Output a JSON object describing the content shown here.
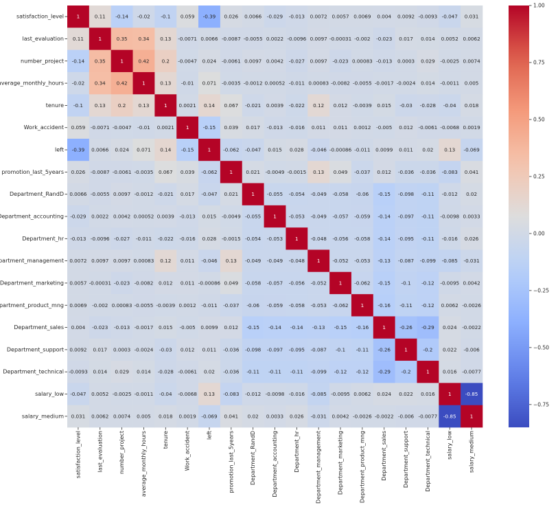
{
  "chart_data": {
    "type": "heatmap",
    "title": "",
    "xlabel": "",
    "ylabel": "",
    "colormap": "coolwarm",
    "vmin": -0.85,
    "vmax": 1.0,
    "annotate": true,
    "labels": [
      "satisfaction_level",
      "last_evaluation",
      "number_project",
      "average_monthly_hours",
      "tenure",
      "Work_accident",
      "left",
      "promotion_last_5years",
      "Department_RandD",
      "Department_accounting",
      "Department_hr",
      "Department_management",
      "Department_marketing",
      "Department_product_mng",
      "Department_sales",
      "Department_support",
      "Department_technical",
      "salary_low",
      "salary_medium"
    ],
    "values": [
      [
        1,
        0.11,
        -0.14,
        -0.02,
        -0.1,
        0.059,
        -0.39,
        0.026,
        0.0066,
        -0.029,
        -0.013,
        0.0072,
        0.0057,
        0.0069,
        0.004,
        0.0092,
        -0.0093,
        -0.047,
        0.031
      ],
      [
        0.11,
        1,
        0.35,
        0.34,
        0.13,
        -0.0071,
        0.0066,
        -0.0087,
        -0.0055,
        0.0022,
        -0.0096,
        0.0097,
        -0.00031,
        -0.002,
        -0.023,
        0.017,
        0.014,
        0.0052,
        0.0062
      ],
      [
        -0.14,
        0.35,
        1,
        0.42,
        0.2,
        -0.0047,
        0.024,
        -0.0061,
        0.0097,
        0.0042,
        -0.027,
        0.0097,
        -0.023,
        0.00083,
        -0.013,
        0.0003,
        0.029,
        -0.0025,
        0.0074
      ],
      [
        -0.02,
        0.34,
        0.42,
        1,
        0.13,
        -0.01,
        0.071,
        -0.0035,
        -0.0012,
        0.00052,
        -0.011,
        0.00083,
        -0.0082,
        -0.0055,
        -0.0017,
        -0.0024,
        0.014,
        -0.0011,
        0.005
      ],
      [
        -0.1,
        0.13,
        0.2,
        0.13,
        1,
        0.0021,
        0.14,
        0.067,
        -0.021,
        0.0039,
        -0.022,
        0.12,
        0.012,
        -0.0039,
        0.015,
        -0.03,
        -0.028,
        -0.04,
        0.018
      ],
      [
        0.059,
        -0.0071,
        -0.0047,
        -0.01,
        0.0021,
        1,
        -0.15,
        0.039,
        0.017,
        -0.013,
        -0.016,
        0.011,
        0.011,
        0.0012,
        -0.005,
        0.012,
        -0.0061,
        -0.0068,
        0.0019
      ],
      [
        -0.39,
        0.0066,
        0.024,
        0.071,
        0.14,
        -0.15,
        1,
        -0.062,
        -0.047,
        0.015,
        0.028,
        -0.046,
        -0.00086,
        -0.011,
        0.0099,
        0.011,
        0.02,
        0.13,
        -0.069
      ],
      [
        0.026,
        -0.0087,
        -0.0061,
        -0.0035,
        0.067,
        0.039,
        -0.062,
        1,
        0.021,
        -0.0049,
        -0.0015,
        0.13,
        0.049,
        -0.037,
        0.012,
        -0.036,
        -0.036,
        -0.083,
        0.041
      ],
      [
        0.0066,
        -0.0055,
        0.0097,
        -0.0012,
        -0.021,
        0.017,
        -0.047,
        0.021,
        1,
        -0.055,
        -0.054,
        -0.049,
        -0.058,
        -0.06,
        -0.15,
        -0.098,
        -0.11,
        -0.012,
        0.02
      ],
      [
        -0.029,
        0.0022,
        0.0042,
        0.00052,
        0.0039,
        -0.013,
        0.015,
        -0.0049,
        -0.055,
        1,
        -0.053,
        -0.049,
        -0.057,
        -0.059,
        -0.14,
        -0.097,
        -0.11,
        -0.0098,
        0.0033
      ],
      [
        -0.013,
        -0.0096,
        -0.027,
        -0.011,
        -0.022,
        -0.016,
        0.028,
        -0.0015,
        -0.054,
        -0.053,
        1,
        -0.048,
        -0.056,
        -0.058,
        -0.14,
        -0.095,
        -0.11,
        -0.016,
        0.026
      ],
      [
        0.0072,
        0.0097,
        0.0097,
        0.00083,
        0.12,
        0.011,
        -0.046,
        0.13,
        -0.049,
        -0.049,
        -0.048,
        1,
        -0.052,
        -0.053,
        -0.13,
        -0.087,
        -0.099,
        -0.085,
        -0.031
      ],
      [
        0.0057,
        -0.00031,
        -0.023,
        -0.0082,
        0.012,
        0.011,
        -0.00086,
        0.049,
        -0.058,
        -0.057,
        -0.056,
        -0.052,
        1,
        -0.062,
        -0.15,
        -0.1,
        -0.12,
        -0.0095,
        0.0042
      ],
      [
        0.0069,
        -0.002,
        0.00083,
        -0.0055,
        -0.0039,
        0.0012,
        -0.011,
        -0.037,
        -0.06,
        -0.059,
        -0.058,
        -0.053,
        -0.062,
        1,
        -0.16,
        -0.11,
        -0.12,
        0.0062,
        -0.0026
      ],
      [
        0.004,
        -0.023,
        -0.013,
        -0.0017,
        0.015,
        -0.005,
        0.0099,
        0.012,
        -0.15,
        -0.14,
        -0.14,
        -0.13,
        -0.15,
        -0.16,
        1,
        -0.26,
        -0.29,
        0.024,
        -0.0022
      ],
      [
        0.0092,
        0.017,
        0.0003,
        -0.0024,
        -0.03,
        0.012,
        0.011,
        -0.036,
        -0.098,
        -0.097,
        -0.095,
        -0.087,
        -0.1,
        -0.11,
        -0.26,
        1,
        -0.2,
        0.022,
        -0.006
      ],
      [
        -0.0093,
        0.014,
        0.029,
        0.014,
        -0.028,
        -0.0061,
        0.02,
        -0.036,
        -0.11,
        -0.11,
        -0.11,
        -0.099,
        -0.12,
        -0.12,
        -0.29,
        -0.2,
        1,
        0.016,
        -0.0077
      ],
      [
        -0.047,
        0.0052,
        -0.0025,
        -0.0011,
        -0.04,
        -0.0068,
        0.13,
        -0.083,
        -0.012,
        -0.0098,
        -0.016,
        -0.085,
        -0.0095,
        0.0062,
        0.024,
        0.022,
        0.016,
        1,
        -0.85
      ],
      [
        0.031,
        0.0062,
        0.0074,
        0.005,
        0.018,
        0.0019,
        -0.069,
        0.041,
        0.02,
        0.0033,
        0.026,
        -0.031,
        0.0042,
        -0.0026,
        -0.0022,
        -0.006,
        -0.0077,
        -0.85,
        1
      ]
    ],
    "colorbar": {
      "ticks": [
        -0.75,
        -0.5,
        -0.25,
        0.0,
        0.25,
        0.5,
        0.75,
        1.0
      ],
      "tick_labels": [
        "−0.75",
        "−0.50",
        "−0.25",
        "0.00",
        "0.25",
        "0.50",
        "0.75",
        "1.00"
      ]
    }
  }
}
